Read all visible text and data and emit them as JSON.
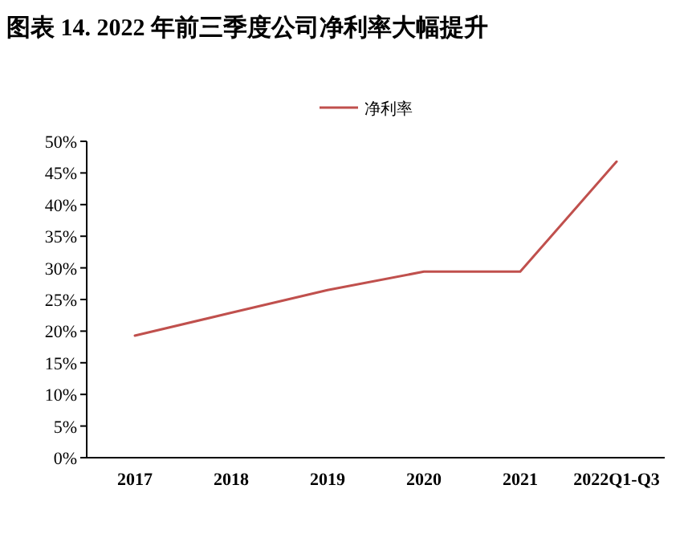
{
  "chart_data": {
    "type": "line",
    "title": "图表 14. 2022 年前三季度公司净利率大幅提升",
    "categories": [
      "2017",
      "2018",
      "2019",
      "2020",
      "2021",
      "2022Q1-Q3"
    ],
    "series": [
      {
        "name": "净利率",
        "color": "#c0504d",
        "values": [
          19.3,
          22.9,
          26.5,
          29.4,
          29.4,
          46.8
        ]
      }
    ],
    "ylim": [
      0,
      50
    ],
    "yticks": [
      {
        "value": 0,
        "label": "0%"
      },
      {
        "value": 5,
        "label": "5%"
      },
      {
        "value": 10,
        "label": "10%"
      },
      {
        "value": 15,
        "label": "15%"
      },
      {
        "value": 20,
        "label": "20%"
      },
      {
        "value": 25,
        "label": "25%"
      },
      {
        "value": 30,
        "label": "30%"
      },
      {
        "value": 35,
        "label": "35%"
      },
      {
        "value": 40,
        "label": "40%"
      },
      {
        "value": 45,
        "label": "45%"
      },
      {
        "value": 50,
        "label": "50%"
      }
    ],
    "grid": false,
    "legend": "top",
    "marker": "none",
    "line_style": "solid"
  }
}
